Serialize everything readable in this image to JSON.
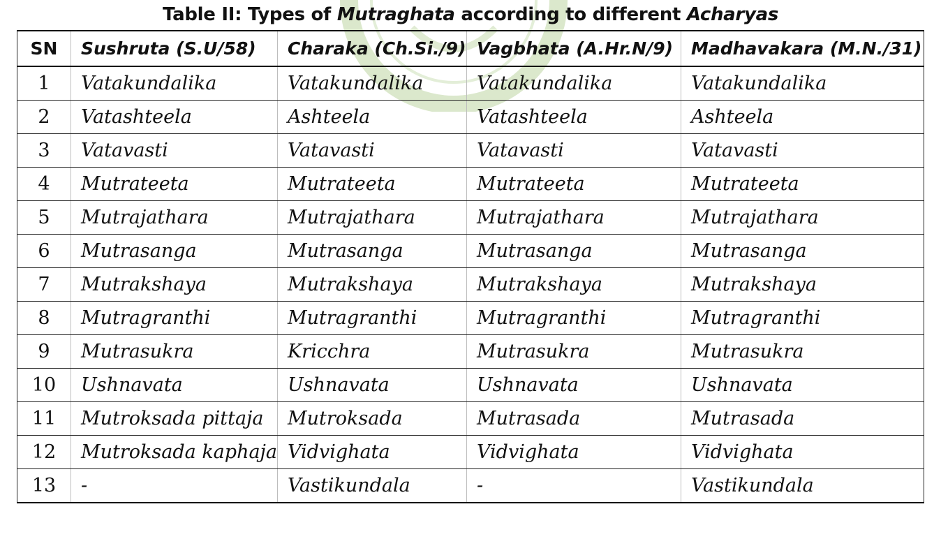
{
  "title": {
    "part1": "Table II: Types of ",
    "part2": "Mutraghata",
    "part3": " according to different ",
    "part4": "Acharyas"
  },
  "table": {
    "headers": [
      "SN",
      "Sushruta (S.U/58)",
      "Charaka (Ch.Si./9)",
      "Vagbhata (A.Hr.N/9)",
      "Madhavakara (M.N./31)"
    ],
    "rows": [
      [
        "1",
        "Vatakundalika",
        "Vatakundalika",
        "Vatakundalika",
        "Vatakundalika"
      ],
      [
        "2",
        "Vatashteela",
        "Ashteela",
        "Vatashteela",
        "Ashteela"
      ],
      [
        "3",
        "Vatavasti",
        "Vatavasti",
        "Vatavasti",
        "Vatavasti"
      ],
      [
        "4",
        "Mutrateeta",
        "Mutrateeta",
        "Mutrateeta",
        "Mutrateeta"
      ],
      [
        "5",
        "Mutrajathara",
        "Mutrajathara",
        "Mutrajathara",
        "Mutrajathara"
      ],
      [
        "6",
        "Mutrasanga",
        "Mutrasanga",
        "Mutrasanga",
        "Mutrasanga"
      ],
      [
        "7",
        "Mutrakshaya",
        "Mutrakshaya",
        "Mutrakshaya",
        "Mutrakshaya"
      ],
      [
        "8",
        "Mutragranthi",
        "Mutragranthi",
        "Mutragranthi",
        "Mutragranthi"
      ],
      [
        "9",
        "Mutrasukra",
        "Kricchra",
        "Mutrasukra",
        "Mutrasukra"
      ],
      [
        "10",
        "Ushnavata",
        "Ushnavata",
        "Ushnavata",
        "Ushnavata"
      ],
      [
        "11",
        "Mutroksada pittaja",
        "Mutroksada",
        "Mutrasada",
        "Mutrasada"
      ],
      [
        "12",
        "Mutroksada kaphaja",
        "Vidvighata",
        "Vidvighata",
        "Vidvighata"
      ],
      [
        "13",
        "-",
        "Vastikundala",
        "-",
        "Vastikundala"
      ]
    ]
  },
  "colors": {
    "watermark": "#c8dcb4",
    "text": "#111111",
    "border": "#222222"
  }
}
